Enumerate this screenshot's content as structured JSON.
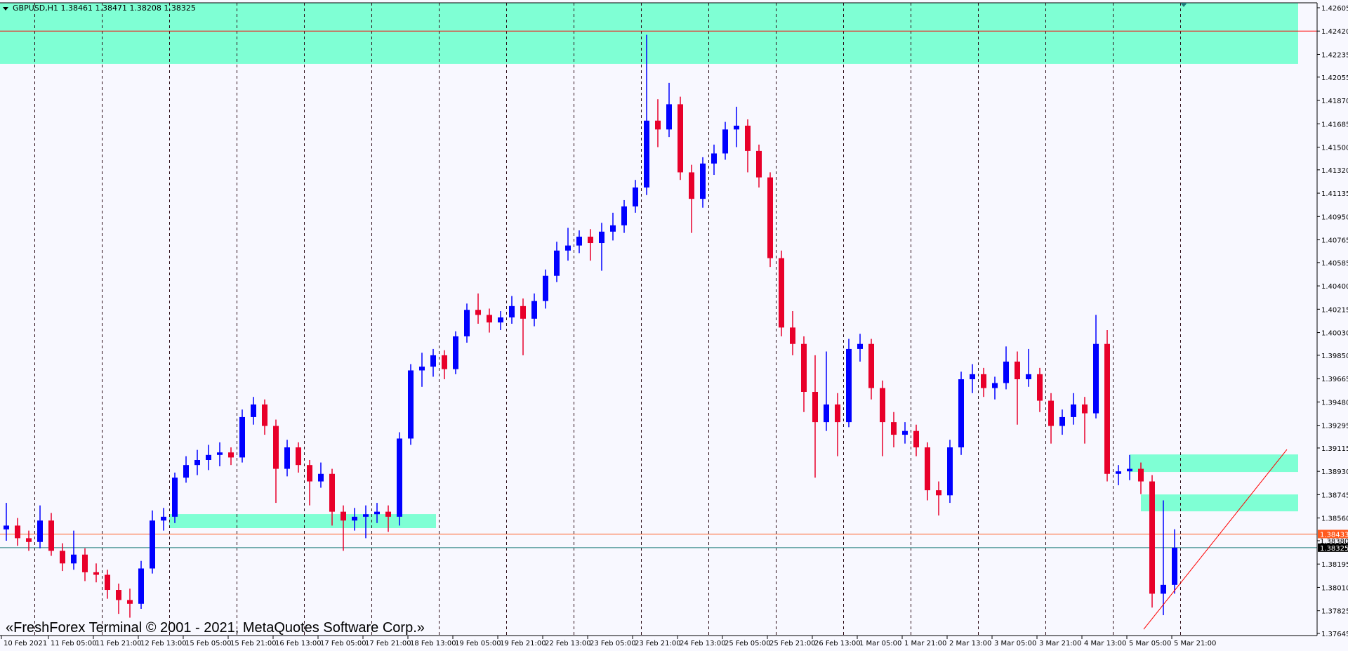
{
  "window": {
    "header": "GBPUSD,H1  1.38461 1.38471 1.38208 1.38325",
    "watermark": "«FreshForex Terminal © 2001 - 2021, MetaQuotes Software Corp.»"
  },
  "chart_data": {
    "type": "candlestick",
    "symbol": "GBPUSD",
    "timeframe": "H1",
    "ohlc_header": {
      "open": 1.38461,
      "high": 1.38471,
      "low": 1.38208,
      "close": 1.38325
    },
    "ylim": [
      1.37645,
      1.42605
    ],
    "y_ticks": [
      "1.42605",
      "1.42420",
      "1.42235",
      "1.42055",
      "1.41870",
      "1.41685",
      "1.41500",
      "1.41320",
      "1.41135",
      "1.40950",
      "1.40765",
      "1.40585",
      "1.40400",
      "1.40215",
      "1.40030",
      "1.39850",
      "1.39665",
      "1.39480",
      "1.39295",
      "1.39115",
      "1.38930",
      "1.38745",
      "1.38560",
      "1.38380",
      "1.38195",
      "1.38010",
      "1.37825",
      "1.37645"
    ],
    "x_ticks": [
      "10 Feb 2021",
      "11 Feb 05:00",
      "11 Feb 21:00",
      "12 Feb 13:00",
      "15 Feb 05:00",
      "15 Feb 21:00",
      "16 Feb 13:00",
      "17 Feb 05:00",
      "17 Feb 21:00",
      "18 Feb 13:00",
      "19 Feb 05:00",
      "19 Feb 21:00",
      "22 Feb 13:00",
      "23 Feb 05:00",
      "23 Feb 21:00",
      "24 Feb 13:00",
      "25 Feb 05:00",
      "25 Feb 21:00",
      "26 Feb 13:00",
      "1 Mar 05:00",
      "1 Mar 21:00",
      "2 Mar 13:00",
      "3 Mar 05:00",
      "3 Mar 21:00",
      "4 Mar 13:00",
      "5 Mar 05:00",
      "5 Mar 21:00"
    ],
    "day_separators": [
      "11 Feb",
      "12 Feb",
      "15 Feb",
      "16 Feb",
      "17 Feb",
      "18 Feb",
      "19 Feb",
      "22 Feb",
      "23 Feb",
      "24 Feb",
      "25 Feb",
      "26 Feb",
      "1 Mar",
      "2 Mar",
      "3 Mar",
      "4 Mar",
      "5 Mar",
      "8 Mar"
    ],
    "grid": "vertical dashed period separators",
    "colors": {
      "background": "#F8F8FF",
      "bull": "#0000FF",
      "bear": "#E8002A",
      "zone": "#7FFFD4",
      "level_line": "#FF0000",
      "bid_line": "#FF5A1E",
      "last_line": "#1E7B7B",
      "trendline": "#FF0000"
    },
    "price_labels": {
      "bid": "1.38433",
      "ask": "1.38380",
      "last": "1.38325"
    },
    "zones": [
      {
        "from_time": "10 Feb 12:00",
        "to_time": "9 Mar 18:00",
        "high": 1.42605,
        "low": 1.4216
      },
      {
        "from_time": "15 Feb 00:00",
        "to_time": "18 Feb 23:00",
        "high": 1.38591,
        "low": 1.3848
      },
      {
        "from_time": "5 Mar 06:00",
        "to_time": "9 Mar 18:00",
        "high": 1.39064,
        "low": 1.38925
      },
      {
        "from_time": "5 Mar 10:00",
        "to_time": "9 Mar 18:00",
        "high": 1.38747,
        "low": 1.38613
      }
    ],
    "horizontal_lines": [
      {
        "price": 1.4242,
        "color": "#FF0000"
      }
    ],
    "trendline": {
      "start_time": "5 Mar 11:00",
      "start_price": 1.37678,
      "end_time": "9 Mar 14:00",
      "end_price": 1.39103
    },
    "candle_interval": "4h aggregate of H1",
    "candles": [
      [
        "10 Feb 12:00",
        1.3847,
        1.3868,
        1.3838,
        1.385
      ],
      [
        "10 Feb 16:00",
        1.385,
        1.3856,
        1.3834,
        1.384
      ],
      [
        "10 Feb 20:00",
        1.384,
        1.3846,
        1.383,
        1.3837
      ],
      [
        "11 Feb 00:00",
        1.3837,
        1.3866,
        1.3832,
        1.3854
      ],
      [
        "11 Feb 04:00",
        1.3854,
        1.386,
        1.3826,
        1.383
      ],
      [
        "11 Feb 08:00",
        1.383,
        1.3836,
        1.3814,
        1.382
      ],
      [
        "11 Feb 12:00",
        1.382,
        1.3846,
        1.3815,
        1.3827
      ],
      [
        "11 Feb 16:00",
        1.3827,
        1.3832,
        1.3806,
        1.3813
      ],
      [
        "11 Feb 20:00",
        1.3813,
        1.382,
        1.3805,
        1.3811
      ],
      [
        "12 Feb 00:00",
        1.3811,
        1.3815,
        1.3792,
        1.3799
      ],
      [
        "12 Feb 04:00",
        1.3799,
        1.3804,
        1.378,
        1.3791
      ],
      [
        "12 Feb 08:00",
        1.3791,
        1.38,
        1.3777,
        1.3788
      ],
      [
        "12 Feb 12:00",
        1.3788,
        1.3822,
        1.3784,
        1.3816
      ],
      [
        "12 Feb 16:00",
        1.3816,
        1.3862,
        1.3812,
        1.3854
      ],
      [
        "12 Feb 20:00",
        1.3854,
        1.3864,
        1.3846,
        1.3857
      ],
      [
        "15 Feb 00:00",
        1.3857,
        1.3892,
        1.3852,
        1.3888
      ],
      [
        "15 Feb 04:00",
        1.3888,
        1.3905,
        1.3884,
        1.3898
      ],
      [
        "15 Feb 08:00",
        1.3898,
        1.391,
        1.389,
        1.3902
      ],
      [
        "15 Feb 12:00",
        1.3902,
        1.3914,
        1.3894,
        1.3906
      ],
      [
        "15 Feb 16:00",
        1.3906,
        1.3916,
        1.3897,
        1.3908
      ],
      [
        "15 Feb 20:00",
        1.3908,
        1.3912,
        1.3898,
        1.3904
      ],
      [
        "16 Feb 00:00",
        1.3904,
        1.3942,
        1.39,
        1.3936
      ],
      [
        "16 Feb 04:00",
        1.3936,
        1.3952,
        1.393,
        1.3946
      ],
      [
        "16 Feb 08:00",
        1.3946,
        1.395,
        1.3922,
        1.3929
      ],
      [
        "16 Feb 12:00",
        1.3929,
        1.3934,
        1.3868,
        1.3895
      ],
      [
        "16 Feb 16:00",
        1.3895,
        1.3918,
        1.3889,
        1.3912
      ],
      [
        "16 Feb 20:00",
        1.3912,
        1.3916,
        1.3892,
        1.3898
      ],
      [
        "17 Feb 00:00",
        1.3898,
        1.3902,
        1.3866,
        1.3885
      ],
      [
        "17 Feb 04:00",
        1.3885,
        1.39,
        1.388,
        1.3891
      ],
      [
        "17 Feb 08:00",
        1.3891,
        1.3895,
        1.385,
        1.3861
      ],
      [
        "17 Feb 12:00",
        1.3861,
        1.3866,
        1.383,
        1.3854
      ],
      [
        "17 Feb 16:00",
        1.3854,
        1.3864,
        1.3846,
        1.3857
      ],
      [
        "17 Feb 20:00",
        1.3857,
        1.3866,
        1.384,
        1.3859
      ],
      [
        "18 Feb 00:00",
        1.3859,
        1.3868,
        1.3852,
        1.3861
      ],
      [
        "18 Feb 04:00",
        1.3861,
        1.3866,
        1.3845,
        1.3857
      ],
      [
        "18 Feb 08:00",
        1.3857,
        1.3924,
        1.385,
        1.3919
      ],
      [
        "18 Feb 12:00",
        1.3919,
        1.3978,
        1.3914,
        1.3973
      ],
      [
        "18 Feb 16:00",
        1.3973,
        1.3987,
        1.396,
        1.3976
      ],
      [
        "18 Feb 20:00",
        1.3976,
        1.399,
        1.3968,
        1.3985
      ],
      [
        "19 Feb 00:00",
        1.3985,
        1.3989,
        1.3966,
        1.3974
      ],
      [
        "19 Feb 04:00",
        1.3974,
        1.4004,
        1.397,
        1.4
      ],
      [
        "19 Feb 08:00",
        1.4,
        1.4026,
        1.3995,
        1.4021
      ],
      [
        "19 Feb 12:00",
        1.4021,
        1.4034,
        1.401,
        1.4017
      ],
      [
        "19 Feb 16:00",
        1.4017,
        1.4022,
        1.4003,
        1.4011
      ],
      [
        "19 Feb 20:00",
        1.4011,
        1.402,
        1.4005,
        1.4015
      ],
      [
        "22 Feb 00:00",
        1.4015,
        1.4032,
        1.401,
        1.4024
      ],
      [
        "22 Feb 04:00",
        1.4024,
        1.403,
        1.3985,
        1.4014
      ],
      [
        "22 Feb 08:00",
        1.4014,
        1.4034,
        1.4008,
        1.4028
      ],
      [
        "22 Feb 12:00",
        1.4028,
        1.4053,
        1.4022,
        1.4048
      ],
      [
        "22 Feb 16:00",
        1.4048,
        1.4075,
        1.4043,
        1.4068
      ],
      [
        "22 Feb 20:00",
        1.4068,
        1.4086,
        1.406,
        1.4072
      ],
      [
        "23 Feb 00:00",
        1.4072,
        1.4084,
        1.4066,
        1.4079
      ],
      [
        "23 Feb 04:00",
        1.4079,
        1.4085,
        1.406,
        1.4074
      ],
      [
        "23 Feb 08:00",
        1.4074,
        1.409,
        1.4052,
        1.4083
      ],
      [
        "23 Feb 12:00",
        1.4083,
        1.4098,
        1.4076,
        1.4088
      ],
      [
        "23 Feb 16:00",
        1.4088,
        1.4108,
        1.4082,
        1.4103
      ],
      [
        "23 Feb 20:00",
        1.4103,
        1.4124,
        1.4098,
        1.4118
      ],
      [
        "24 Feb 00:00",
        1.4118,
        1.4239,
        1.4112,
        1.4171
      ],
      [
        "24 Feb 04:00",
        1.4171,
        1.4188,
        1.415,
        1.4164
      ],
      [
        "24 Feb 08:00",
        1.4164,
        1.4201,
        1.4158,
        1.4184
      ],
      [
        "24 Feb 12:00",
        1.4184,
        1.419,
        1.4124,
        1.413
      ],
      [
        "24 Feb 16:00",
        1.413,
        1.4136,
        1.4082,
        1.4109
      ],
      [
        "24 Feb 20:00",
        1.4109,
        1.4142,
        1.4102,
        1.4137
      ],
      [
        "25 Feb 00:00",
        1.4137,
        1.4152,
        1.4128,
        1.4145
      ],
      [
        "25 Feb 04:00",
        1.4145,
        1.417,
        1.414,
        1.4164
      ],
      [
        "25 Feb 08:00",
        1.4164,
        1.4182,
        1.415,
        1.4167
      ],
      [
        "25 Feb 12:00",
        1.4167,
        1.4172,
        1.413,
        1.4147
      ],
      [
        "25 Feb 16:00",
        1.4147,
        1.4152,
        1.4118,
        1.4126
      ],
      [
        "25 Feb 20:00",
        1.4126,
        1.413,
        1.4055,
        1.4062
      ],
      [
        "26 Feb 00:00",
        1.4062,
        1.4068,
        1.4,
        1.4007
      ],
      [
        "26 Feb 04:00",
        1.4007,
        1.402,
        1.3985,
        1.3994
      ],
      [
        "26 Feb 08:00",
        1.3994,
        1.4,
        1.394,
        1.3956
      ],
      [
        "26 Feb 12:00",
        1.3956,
        1.3985,
        1.3888,
        1.3932
      ],
      [
        "26 Feb 16:00",
        1.3932,
        1.3988,
        1.3925,
        1.3946
      ],
      [
        "26 Feb 20:00",
        1.3946,
        1.3955,
        1.3905,
        1.3932
      ],
      [
        "1 Mar 00:00",
        1.3932,
        1.3998,
        1.3928,
        1.399
      ],
      [
        "1 Mar 04:00",
        1.399,
        1.4002,
        1.398,
        1.3994
      ],
      [
        "1 Mar 08:00",
        1.3994,
        1.3998,
        1.395,
        1.3959
      ],
      [
        "1 Mar 12:00",
        1.3959,
        1.3965,
        1.3905,
        1.3932
      ],
      [
        "1 Mar 16:00",
        1.3932,
        1.394,
        1.3912,
        1.3922
      ],
      [
        "1 Mar 20:00",
        1.3922,
        1.3932,
        1.3915,
        1.3925
      ],
      [
        "2 Mar 00:00",
        1.3925,
        1.393,
        1.3905,
        1.3912
      ],
      [
        "2 Mar 04:00",
        1.3912,
        1.3916,
        1.387,
        1.3878
      ],
      [
        "2 Mar 08:00",
        1.3878,
        1.3885,
        1.3858,
        1.3874
      ],
      [
        "2 Mar 12:00",
        1.3874,
        1.3918,
        1.3868,
        1.3912
      ],
      [
        "2 Mar 16:00",
        1.3912,
        1.3972,
        1.3906,
        1.3966
      ],
      [
        "2 Mar 20:00",
        1.3966,
        1.3978,
        1.3955,
        1.397
      ],
      [
        "3 Mar 00:00",
        1.397,
        1.3975,
        1.3952,
        1.3959
      ],
      [
        "3 Mar 04:00",
        1.3959,
        1.3968,
        1.395,
        1.3963
      ],
      [
        "3 Mar 08:00",
        1.3963,
        1.3992,
        1.3958,
        1.398
      ],
      [
        "3 Mar 12:00",
        1.398,
        1.3988,
        1.393,
        1.3966
      ],
      [
        "3 Mar 16:00",
        1.3966,
        1.399,
        1.396,
        1.397
      ],
      [
        "3 Mar 20:00",
        1.397,
        1.3975,
        1.394,
        1.3949
      ],
      [
        "4 Mar 00:00",
        1.3949,
        1.3955,
        1.3915,
        1.3929
      ],
      [
        "4 Mar 04:00",
        1.3929,
        1.3942,
        1.3922,
        1.3936
      ],
      [
        "4 Mar 08:00",
        1.3936,
        1.3955,
        1.393,
        1.3946
      ],
      [
        "4 Mar 12:00",
        1.3946,
        1.3952,
        1.3915,
        1.3939
      ],
      [
        "4 Mar 16:00",
        1.3939,
        1.4017,
        1.3935,
        1.3994
      ],
      [
        "4 Mar 20:00",
        1.3994,
        1.4005,
        1.3885,
        1.3891
      ],
      [
        "5 Mar 00:00",
        1.3891,
        1.3898,
        1.3882,
        1.3893
      ],
      [
        "5 Mar 04:00",
        1.3893,
        1.3906,
        1.3886,
        1.3895
      ],
      [
        "5 Mar 08:00",
        1.3895,
        1.39,
        1.3875,
        1.3885
      ],
      [
        "5 Mar 12:00",
        1.3885,
        1.389,
        1.3785,
        1.3796
      ],
      [
        "5 Mar 16:00",
        1.3796,
        1.387,
        1.3779,
        1.3803
      ],
      [
        "5 Mar 20:00",
        1.3803,
        1.38471,
        1.3796,
        1.38325
      ]
    ]
  }
}
